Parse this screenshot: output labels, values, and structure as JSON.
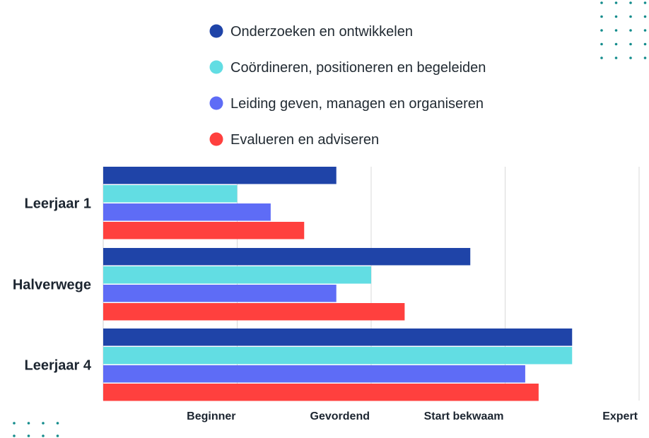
{
  "chart_data": {
    "type": "bar",
    "orientation": "horizontal",
    "title": "",
    "xlabel": "",
    "ylabel": "",
    "categories": [
      "Leerjaar 1",
      "Halverwege",
      "Leerjaar 4"
    ],
    "x_ticks": [
      "Beginner",
      "Gevordend",
      "Start bekwaam",
      "Expert"
    ],
    "xlim": [
      0,
      4
    ],
    "grid": "vertical",
    "legend_position": "top",
    "series": [
      {
        "name": "Onderzoeken en ontwikkelen",
        "color": "#1f44a8",
        "values": [
          1.74,
          2.74,
          3.5
        ]
      },
      {
        "name": "Coördineren, positioneren en begeleiden",
        "color": "#62dde3",
        "values": [
          1.0,
          2.0,
          3.5
        ]
      },
      {
        "name": "Leiding geven, managen en organiseren",
        "color": "#5e6cf6",
        "values": [
          1.25,
          1.74,
          3.15
        ]
      },
      {
        "name": "Evalueren en adviseren",
        "color": "#ff403e",
        "values": [
          1.5,
          2.25,
          3.25
        ]
      }
    ]
  },
  "decoration": {
    "dot_color": "#138c8c"
  }
}
